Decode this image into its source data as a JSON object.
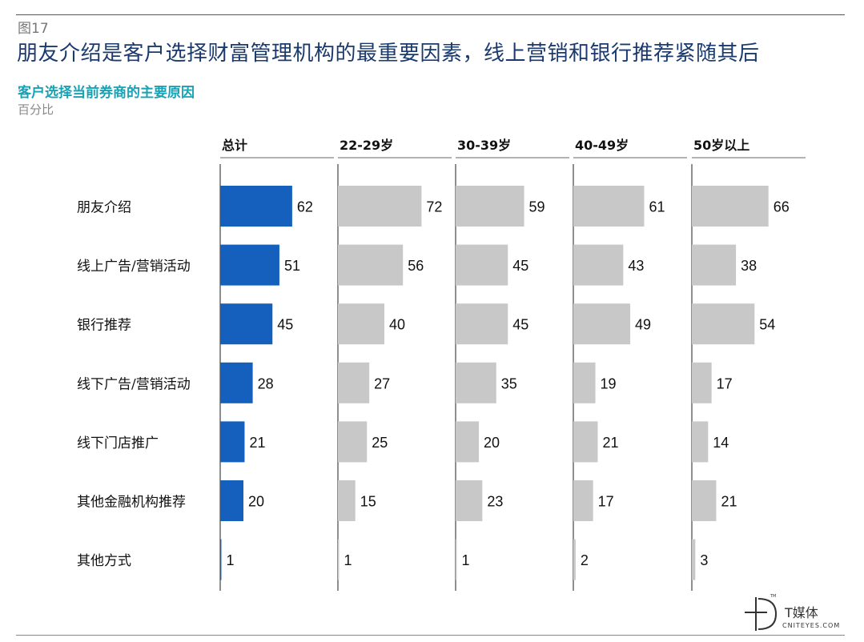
{
  "figure_label": "图17",
  "title": "朋友介绍是客户选择财富管理机构的最重要因素，线上营销和银行推荐紧随其后",
  "subtitle": "客户选择当前券商的主要原因",
  "unit": "百分比",
  "watermark": {
    "name": "T媒体",
    "url": "CNITEYES.COM",
    "tm": "TM"
  },
  "colors": {
    "highlight": "#1560bd",
    "other": "#c8c8c8",
    "title": "#1a3a6e",
    "subtitle": "#19a2b4"
  },
  "chart_data": {
    "type": "bar",
    "orientation": "horizontal",
    "categories": [
      "朋友介绍",
      "线上广告/营销活动",
      "银行推荐",
      "线下广告/营销活动",
      "线下门店推广",
      "其他金融机构推荐",
      "其他方式"
    ],
    "series": [
      {
        "name": "总计",
        "values": [
          62,
          51,
          45,
          28,
          21,
          20,
          1
        ]
      },
      {
        "name": "22-29岁",
        "values": [
          72,
          56,
          40,
          27,
          25,
          15,
          1
        ]
      },
      {
        "name": "30-39岁",
        "values": [
          59,
          45,
          45,
          35,
          20,
          23,
          1
        ]
      },
      {
        "name": "40-49岁",
        "values": [
          61,
          43,
          49,
          19,
          21,
          17,
          2
        ]
      },
      {
        "name": "50岁以上",
        "values": [
          66,
          38,
          54,
          17,
          14,
          21,
          3
        ]
      }
    ],
    "xlim": [
      0,
      100
    ]
  }
}
